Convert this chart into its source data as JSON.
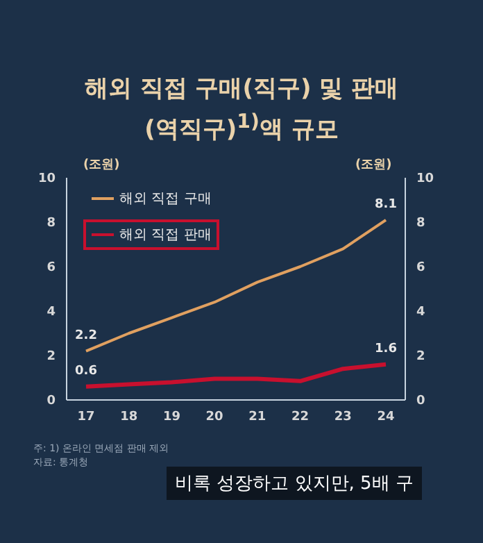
{
  "chart_data": {
    "type": "line",
    "title": "해외 직접 구매(직구) 및 판매(역직구)$^{1)}$액 규모",
    "ylabel": "(조원)",
    "y2label": "(조원)",
    "categories": [
      "17",
      "18",
      "19",
      "20",
      "21",
      "22",
      "23",
      "24"
    ],
    "series": [
      {
        "name": "해외 직접 구매",
        "color": "#e0a060",
        "values": [
          2.2,
          3.0,
          3.7,
          4.4,
          5.3,
          6.0,
          6.8,
          8.1
        ],
        "value_labels": [
          "2.2",
          null,
          null,
          null,
          null,
          null,
          null,
          "8.1"
        ]
      },
      {
        "name": "해외 직접 판매",
        "color": "#c8102e",
        "values": [
          0.6,
          0.7,
          0.8,
          0.95,
          0.95,
          0.85,
          1.4,
          1.6
        ],
        "value_labels": [
          "0.6",
          null,
          null,
          null,
          null,
          null,
          null,
          "1.6"
        ]
      }
    ],
    "ylim": [
      0,
      10
    ],
    "yticks": [
      0,
      2,
      4,
      6,
      8,
      10
    ],
    "y2lim": [
      0,
      10
    ],
    "y2ticks": [
      0,
      2,
      4,
      6,
      8,
      10
    ],
    "grid": false,
    "legend": "top left",
    "marker": "none",
    "line_style": "solid",
    "annotations": [
      "주: 1) 온라인 면세점 판매 제외",
      "자료: 통계청",
      "비록 성장하고 있지만, 5배 구"
    ]
  }
}
